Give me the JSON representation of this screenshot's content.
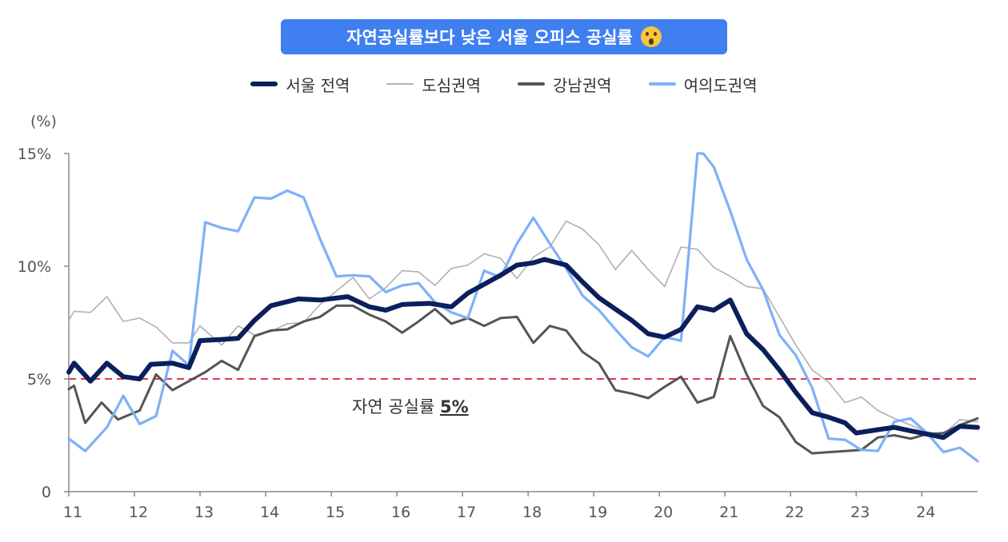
{
  "header": {
    "title": "자연공실률보다 낮은 서울 오피스 공실률",
    "title_emoji": "astonished-face-emoji"
  },
  "colors": {
    "title_bg": "#3f7ff0",
    "seoul": "#0b1f5c",
    "cbd": "#b0b0b0",
    "gbd": "#555555",
    "ybd": "#7eb1f7",
    "reference": "#e23a4c"
  },
  "chart_data": {
    "type": "line",
    "unit_label": "(%)",
    "ylim": [
      0,
      15
    ],
    "yticks": [
      "15%",
      "10%",
      "5%",
      "0"
    ],
    "ytick_values": [
      15,
      10,
      5,
      0
    ],
    "xlim": [
      11,
      24.85
    ],
    "xticks": [
      "11",
      "12",
      "13",
      "14",
      "15",
      "16",
      "17",
      "18",
      "19",
      "20",
      "21",
      "22",
      "23",
      "24"
    ],
    "xtick_values": [
      11,
      12,
      13,
      14,
      15,
      16,
      17,
      18,
      19,
      20,
      21,
      22,
      23,
      24
    ],
    "legend_position": "top-center",
    "grid": false,
    "reference_line": {
      "value": 5,
      "label_prefix": "자연 공실률 ",
      "label_value": "5%"
    },
    "series": [
      {
        "name": "서울 전역",
        "key": "seoul",
        "points": [
          [
            11,
            5.3
          ],
          [
            11.08,
            5.7
          ],
          [
            11.33,
            4.9
          ],
          [
            11.58,
            5.7
          ],
          [
            11.83,
            5.1
          ],
          [
            12.08,
            5.0
          ],
          [
            12.25,
            5.65
          ],
          [
            12.58,
            5.7
          ],
          [
            12.83,
            5.5
          ],
          [
            13.0,
            6.7
          ],
          [
            13.33,
            6.75
          ],
          [
            13.58,
            6.8
          ],
          [
            13.83,
            7.6
          ],
          [
            14.08,
            8.25
          ],
          [
            14.5,
            8.55
          ],
          [
            14.83,
            8.5
          ],
          [
            15.25,
            8.65
          ],
          [
            15.58,
            8.2
          ],
          [
            15.83,
            8.05
          ],
          [
            16.08,
            8.3
          ],
          [
            16.5,
            8.35
          ],
          [
            16.83,
            8.2
          ],
          [
            17.08,
            8.8
          ],
          [
            17.33,
            9.2
          ],
          [
            17.58,
            9.6
          ],
          [
            17.83,
            10.05
          ],
          [
            18.08,
            10.15
          ],
          [
            18.25,
            10.3
          ],
          [
            18.58,
            10.05
          ],
          [
            18.83,
            9.3
          ],
          [
            19.08,
            8.6
          ],
          [
            19.33,
            8.1
          ],
          [
            19.58,
            7.6
          ],
          [
            19.83,
            7.0
          ],
          [
            20.08,
            6.85
          ],
          [
            20.33,
            7.2
          ],
          [
            20.58,
            8.2
          ],
          [
            20.83,
            8.05
          ],
          [
            21.08,
            8.5
          ],
          [
            21.33,
            7.0
          ],
          [
            21.58,
            6.3
          ],
          [
            21.83,
            5.4
          ],
          [
            22.08,
            4.4
          ],
          [
            22.33,
            3.5
          ],
          [
            22.58,
            3.3
          ],
          [
            22.83,
            3.05
          ],
          [
            23.0,
            2.6
          ],
          [
            23.33,
            2.75
          ],
          [
            23.58,
            2.85
          ],
          [
            23.83,
            2.7
          ],
          [
            24.08,
            2.55
          ],
          [
            24.33,
            2.4
          ],
          [
            24.58,
            2.9
          ],
          [
            24.85,
            2.85
          ]
        ]
      },
      {
        "name": "도심권역",
        "key": "cbd",
        "points": [
          [
            11,
            7.6
          ],
          [
            11.08,
            8.0
          ],
          [
            11.33,
            7.95
          ],
          [
            11.58,
            8.65
          ],
          [
            11.83,
            7.55
          ],
          [
            12.08,
            7.7
          ],
          [
            12.33,
            7.3
          ],
          [
            12.58,
            6.6
          ],
          [
            12.83,
            6.6
          ],
          [
            13.0,
            7.35
          ],
          [
            13.33,
            6.5
          ],
          [
            13.58,
            7.35
          ],
          [
            13.83,
            6.95
          ],
          [
            14.08,
            7.1
          ],
          [
            14.33,
            7.45
          ],
          [
            14.58,
            7.5
          ],
          [
            14.83,
            8.3
          ],
          [
            15.08,
            8.9
          ],
          [
            15.33,
            9.5
          ],
          [
            15.58,
            8.55
          ],
          [
            15.83,
            9.05
          ],
          [
            16.08,
            9.8
          ],
          [
            16.33,
            9.75
          ],
          [
            16.58,
            9.15
          ],
          [
            16.83,
            9.9
          ],
          [
            17.08,
            10.05
          ],
          [
            17.33,
            10.55
          ],
          [
            17.58,
            10.35
          ],
          [
            17.83,
            9.45
          ],
          [
            18.08,
            10.4
          ],
          [
            18.33,
            10.85
          ],
          [
            18.58,
            12.0
          ],
          [
            18.83,
            11.65
          ],
          [
            19.08,
            10.95
          ],
          [
            19.33,
            9.85
          ],
          [
            19.58,
            10.7
          ],
          [
            19.83,
            9.85
          ],
          [
            20.08,
            9.1
          ],
          [
            20.33,
            10.85
          ],
          [
            20.58,
            10.75
          ],
          [
            20.83,
            9.95
          ],
          [
            21.08,
            9.55
          ],
          [
            21.33,
            9.1
          ],
          [
            21.58,
            9.0
          ],
          [
            21.83,
            7.75
          ],
          [
            22.08,
            6.5
          ],
          [
            22.33,
            5.4
          ],
          [
            22.58,
            4.85
          ],
          [
            22.83,
            3.95
          ],
          [
            23.08,
            4.2
          ],
          [
            23.33,
            3.6
          ],
          [
            23.58,
            3.25
          ],
          [
            23.83,
            2.95
          ],
          [
            24.08,
            2.65
          ],
          [
            24.33,
            2.55
          ],
          [
            24.58,
            3.2
          ],
          [
            24.85,
            3.1
          ]
        ]
      },
      {
        "name": "강남권역",
        "key": "gbd",
        "points": [
          [
            11,
            4.55
          ],
          [
            11.08,
            4.7
          ],
          [
            11.25,
            3.05
          ],
          [
            11.5,
            3.95
          ],
          [
            11.75,
            3.2
          ],
          [
            12.08,
            3.6
          ],
          [
            12.33,
            5.2
          ],
          [
            12.58,
            4.5
          ],
          [
            12.83,
            4.9
          ],
          [
            13.08,
            5.3
          ],
          [
            13.33,
            5.8
          ],
          [
            13.58,
            5.4
          ],
          [
            13.83,
            6.9
          ],
          [
            14.08,
            7.15
          ],
          [
            14.33,
            7.2
          ],
          [
            14.58,
            7.55
          ],
          [
            14.83,
            7.75
          ],
          [
            15.08,
            8.25
          ],
          [
            15.33,
            8.25
          ],
          [
            15.58,
            7.85
          ],
          [
            15.83,
            7.55
          ],
          [
            16.08,
            7.05
          ],
          [
            16.33,
            7.55
          ],
          [
            16.58,
            8.1
          ],
          [
            16.83,
            7.45
          ],
          [
            17.08,
            7.7
          ],
          [
            17.33,
            7.35
          ],
          [
            17.58,
            7.7
          ],
          [
            17.83,
            7.75
          ],
          [
            18.08,
            6.6
          ],
          [
            18.33,
            7.35
          ],
          [
            18.58,
            7.15
          ],
          [
            18.83,
            6.2
          ],
          [
            19.08,
            5.7
          ],
          [
            19.33,
            4.5
          ],
          [
            19.58,
            4.35
          ],
          [
            19.83,
            4.15
          ],
          [
            20.08,
            4.65
          ],
          [
            20.33,
            5.1
          ],
          [
            20.58,
            3.95
          ],
          [
            20.83,
            4.2
          ],
          [
            21.08,
            6.9
          ],
          [
            21.33,
            5.2
          ],
          [
            21.58,
            3.8
          ],
          [
            21.83,
            3.3
          ],
          [
            22.08,
            2.2
          ],
          [
            22.33,
            1.7
          ],
          [
            22.58,
            1.75
          ],
          [
            22.83,
            1.8
          ],
          [
            23.08,
            1.85
          ],
          [
            23.33,
            2.4
          ],
          [
            23.58,
            2.5
          ],
          [
            23.83,
            2.35
          ],
          [
            24.08,
            2.55
          ],
          [
            24.33,
            2.6
          ],
          [
            24.58,
            2.95
          ],
          [
            24.85,
            3.25
          ]
        ]
      },
      {
        "name": "여의도권역",
        "key": "ybd",
        "points": [
          [
            11,
            2.35
          ],
          [
            11.25,
            1.8
          ],
          [
            11.58,
            2.85
          ],
          [
            11.83,
            4.25
          ],
          [
            12.08,
            3.0
          ],
          [
            12.33,
            3.35
          ],
          [
            12.58,
            6.25
          ],
          [
            12.83,
            5.6
          ],
          [
            13.08,
            11.95
          ],
          [
            13.33,
            11.7
          ],
          [
            13.58,
            11.55
          ],
          [
            13.83,
            13.05
          ],
          [
            14.08,
            13.0
          ],
          [
            14.33,
            13.35
          ],
          [
            14.58,
            13.05
          ],
          [
            14.83,
            11.2
          ],
          [
            15.08,
            9.55
          ],
          [
            15.33,
            9.6
          ],
          [
            15.58,
            9.55
          ],
          [
            15.83,
            8.85
          ],
          [
            16.08,
            9.15
          ],
          [
            16.33,
            9.25
          ],
          [
            16.58,
            8.4
          ],
          [
            16.83,
            7.95
          ],
          [
            17.08,
            7.7
          ],
          [
            17.33,
            9.8
          ],
          [
            17.58,
            9.5
          ],
          [
            17.83,
            11.0
          ],
          [
            18.08,
            12.15
          ],
          [
            18.33,
            11.0
          ],
          [
            18.58,
            9.9
          ],
          [
            18.83,
            8.7
          ],
          [
            19.08,
            8.05
          ],
          [
            19.33,
            7.2
          ],
          [
            19.58,
            6.4
          ],
          [
            19.83,
            6.0
          ],
          [
            20.08,
            6.85
          ],
          [
            20.33,
            6.7
          ],
          [
            20.58,
            15.0
          ],
          [
            20.67,
            15.0
          ],
          [
            20.83,
            14.4
          ],
          [
            21.08,
            12.45
          ],
          [
            21.33,
            10.3
          ],
          [
            21.58,
            8.95
          ],
          [
            21.83,
            6.95
          ],
          [
            22.08,
            6.05
          ],
          [
            22.33,
            4.6
          ],
          [
            22.58,
            2.35
          ],
          [
            22.83,
            2.3
          ],
          [
            23.08,
            1.85
          ],
          [
            23.33,
            1.8
          ],
          [
            23.58,
            3.1
          ],
          [
            23.83,
            3.25
          ],
          [
            24.08,
            2.6
          ],
          [
            24.33,
            1.75
          ],
          [
            24.58,
            1.95
          ],
          [
            24.85,
            1.35
          ]
        ]
      }
    ]
  }
}
